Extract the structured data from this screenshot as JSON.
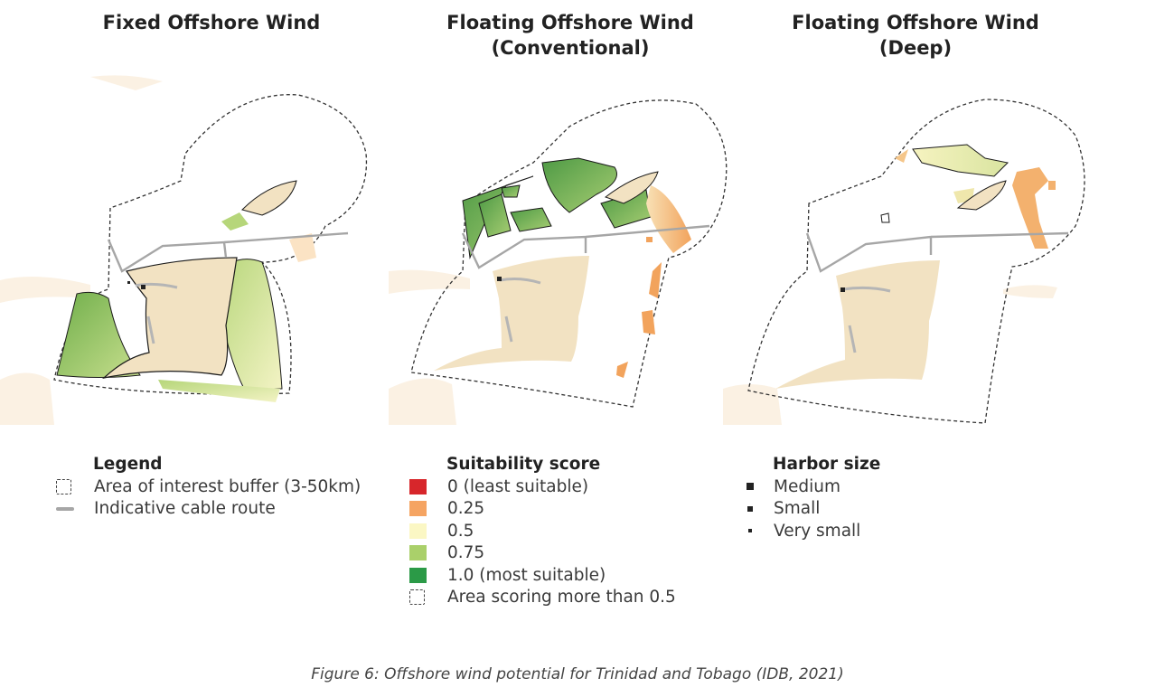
{
  "maps": [
    {
      "title_line1": "Fixed Offshore Wind",
      "title_line2": ""
    },
    {
      "title_line1": "Floating Offshore Wind",
      "title_line2": "(Conventional)"
    },
    {
      "title_line1": "Floating Offshore Wind",
      "title_line2": "(Deep)"
    }
  ],
  "legend": {
    "heading": "Legend",
    "items": [
      {
        "symbol": "dashed-box-icon",
        "label": "Area of interest buffer (3-50km)"
      },
      {
        "symbol": "cable-line-icon",
        "label": "Indicative cable route"
      }
    ]
  },
  "suitability": {
    "heading": "Suitability score",
    "items": [
      {
        "color": "#d7262b",
        "label": "0 (least suitable)"
      },
      {
        "color": "#f5a462",
        "label": "0.25"
      },
      {
        "color": "#fbf7c4",
        "label": "0.5"
      },
      {
        "color": "#aad06a",
        "label": "0.75"
      },
      {
        "color": "#2b9a47",
        "label": "1.0 (most suitable)"
      }
    ],
    "area_label": "Area scoring more than 0.5"
  },
  "harbor": {
    "heading": "Harbor size",
    "items": [
      {
        "size": "medium",
        "label": "Medium"
      },
      {
        "size": "small",
        "label": "Small"
      },
      {
        "size": "very-small",
        "label": "Very small"
      }
    ]
  },
  "colors": {
    "land": "#f2e2c2",
    "land_faded": "#fbf1e3",
    "cable": "#a6a6a6",
    "buffer_outline": "#333333"
  },
  "caption": "Figure 6: Offshore wind potential for Trinidad and Tobago (IDB, 2021)"
}
